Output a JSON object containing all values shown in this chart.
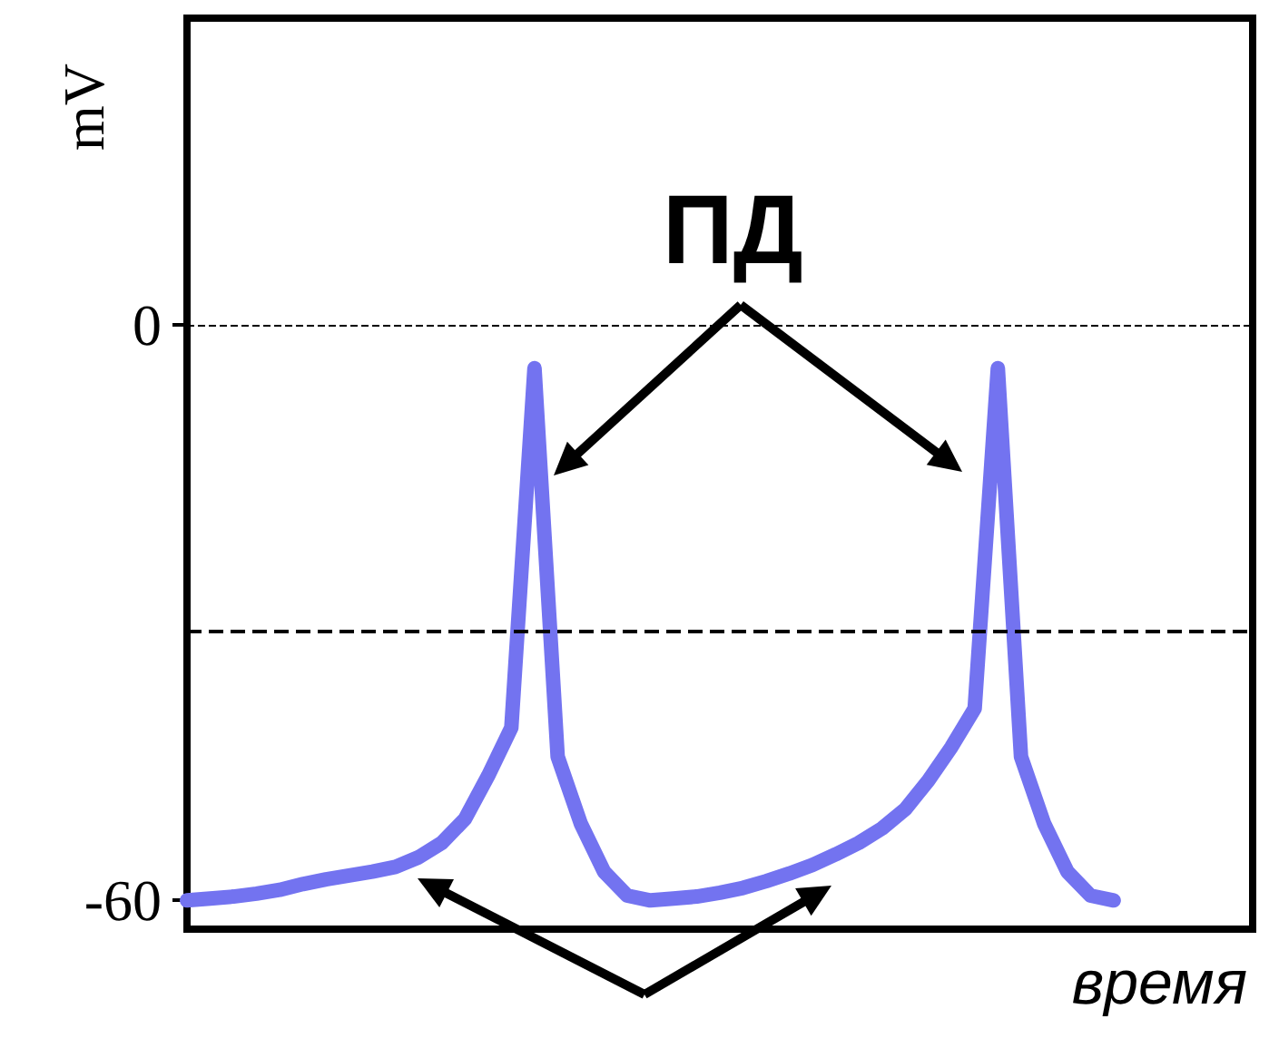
{
  "chart_data": {
    "type": "line",
    "ylabel": "mV",
    "xlabel": "время",
    "annotations": [
      "ПД"
    ],
    "categories": [
      null,
      null,
      null,
      null,
      null,
      null,
      null,
      null,
      null,
      null,
      null,
      null,
      null,
      null,
      null,
      null,
      null,
      null,
      null,
      null,
      null,
      null,
      null,
      null,
      null,
      null,
      null,
      null,
      null,
      null,
      null,
      null,
      null,
      null,
      null,
      null,
      null,
      null,
      null,
      null,
      null,
      null,
      null,
      null,
      null,
      null,
      null
    ],
    "series": [
      {
        "color": "#7373f0",
        "values": [
          -60,
          -59.8,
          -59.6,
          -59.3,
          -58.9,
          -58.3,
          -57.8,
          -57.4,
          -57,
          -56.5,
          -55.5,
          -54,
          -51.5,
          -47,
          -42,
          -4.5,
          -45,
          -52,
          -57,
          -59.5,
          -60,
          -59.8,
          -59.6,
          -59.2,
          -58.7,
          -58,
          -57.2,
          -56.3,
          -55.2,
          -54,
          -52.5,
          -50.5,
          -47.5,
          -44,
          -40,
          -4.5,
          -45,
          -52,
          -57,
          -59.5,
          -60,
          null,
          null,
          null,
          null,
          null,
          null
        ]
      }
    ],
    "ylim": [
      -63,
      32
    ],
    "yticks": [
      0,
      -60
    ],
    "tick_labels": "y",
    "grid": false,
    "line_style": "solid",
    "ref_lines": [
      {
        "axis": "y",
        "value": 0,
        "color": "#000000",
        "line_style": "dashed"
      },
      {
        "axis": "y",
        "value": -32,
        "color": "#000000",
        "line_style": "dashed"
      }
    ]
  }
}
